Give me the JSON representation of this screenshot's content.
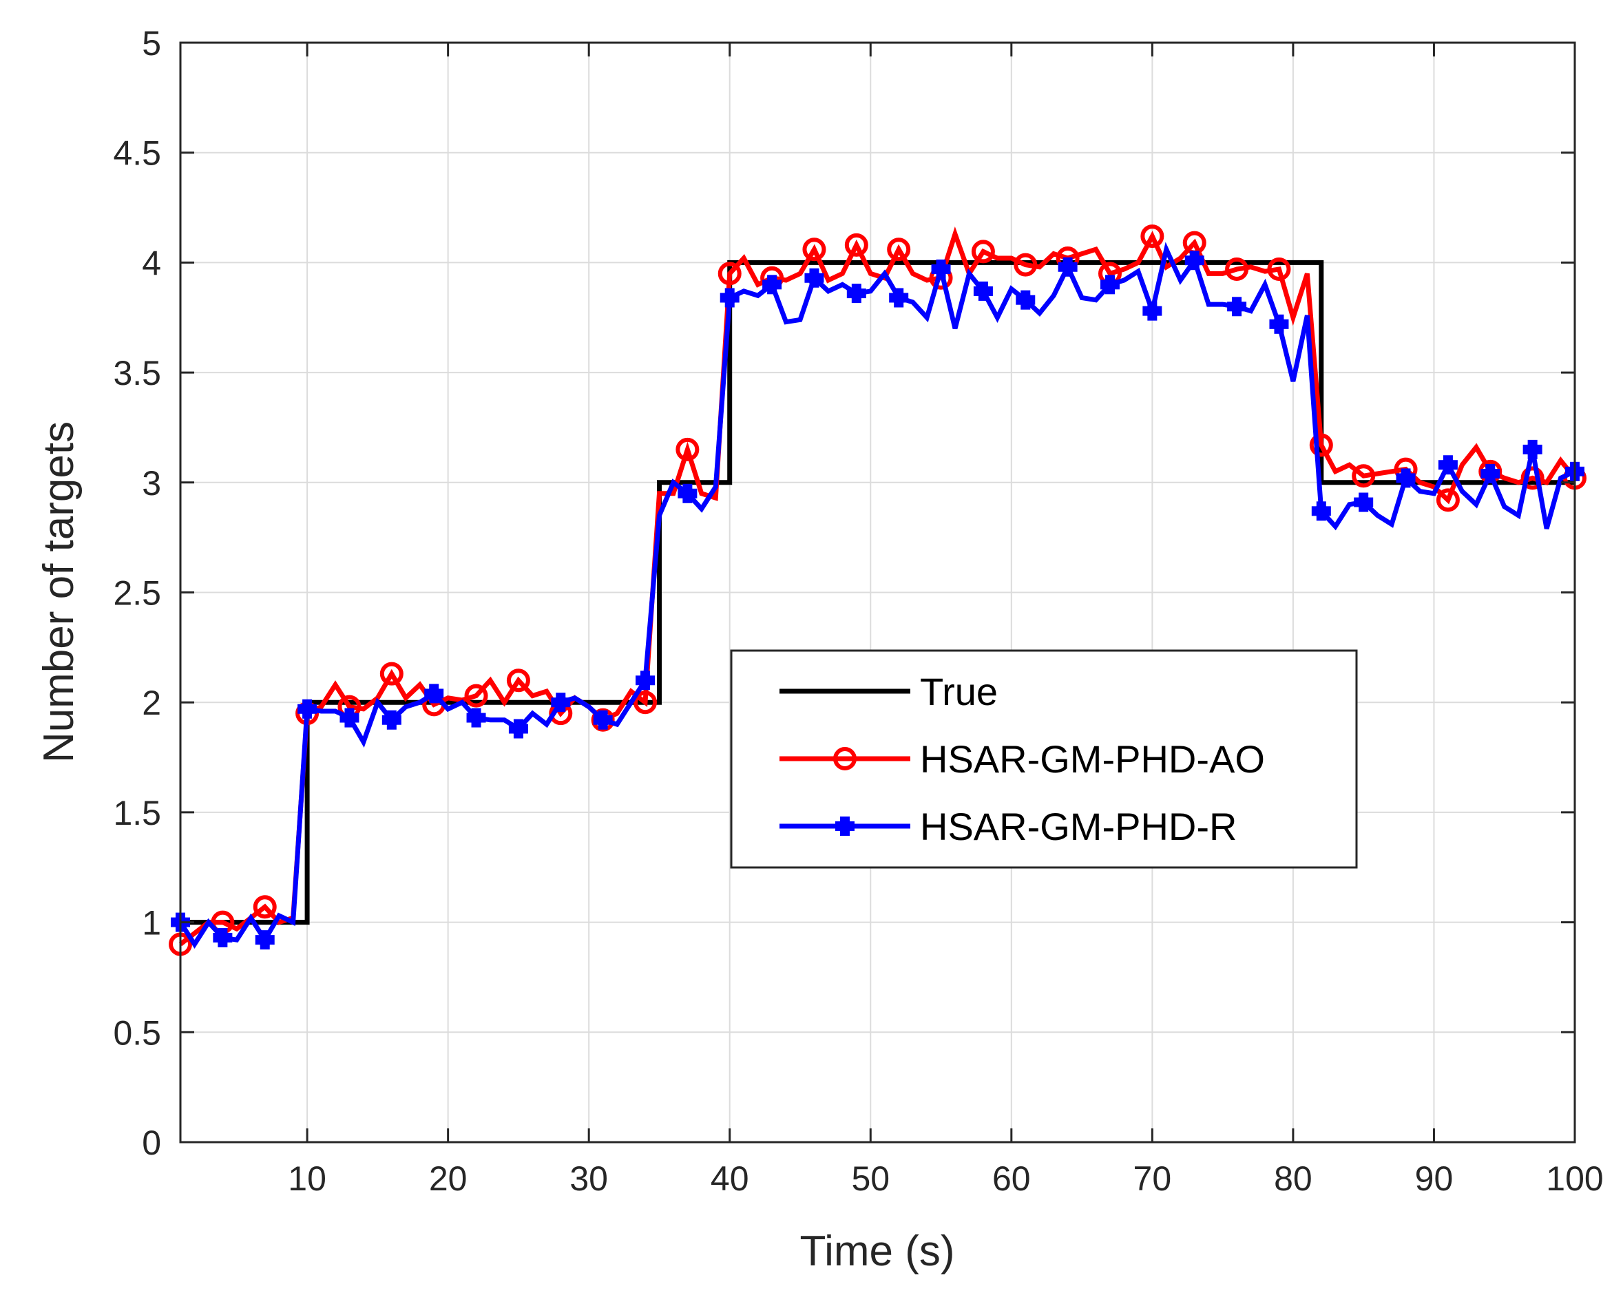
{
  "chart_data": {
    "type": "line",
    "title": "",
    "xlabel": "Time (s)",
    "ylabel": "Number of targets",
    "xlim": [
      1,
      100
    ],
    "ylim": [
      0,
      5
    ],
    "xticks": [
      10,
      20,
      30,
      40,
      50,
      60,
      70,
      80,
      90,
      100
    ],
    "yticks": [
      0,
      0.5,
      1,
      1.5,
      2,
      2.5,
      3,
      3.5,
      4,
      4.5,
      5
    ],
    "ytick_labels": [
      "0",
      "0.5",
      "1",
      "1.5",
      "2",
      "2.5",
      "3",
      "3.5",
      "4",
      "4.5",
      "5"
    ],
    "grid": true,
    "legend_position": "center-right",
    "series": [
      {
        "name": "True",
        "color": "#000000",
        "marker": "none",
        "step": true,
        "x": [
          1,
          10,
          10,
          35,
          35,
          40,
          40,
          82,
          82,
          100
        ],
        "y": [
          1,
          1,
          2,
          2,
          3,
          3,
          4,
          4,
          3,
          3
        ]
      },
      {
        "name": "HSAR-GM-PHD-AO",
        "color": "#ff0000",
        "marker": "circle",
        "marker_every": 3,
        "marker_start": 1,
        "x": [
          1,
          2,
          3,
          4,
          5,
          6,
          7,
          8,
          9,
          10,
          11,
          12,
          13,
          14,
          15,
          16,
          17,
          18,
          19,
          20,
          21,
          22,
          23,
          24,
          25,
          26,
          27,
          28,
          29,
          30,
          31,
          32,
          33,
          34,
          35,
          36,
          37,
          38,
          39,
          40,
          41,
          42,
          43,
          44,
          45,
          46,
          47,
          48,
          49,
          50,
          51,
          52,
          53,
          54,
          55,
          56,
          57,
          58,
          59,
          60,
          61,
          62,
          63,
          64,
          65,
          66,
          67,
          68,
          69,
          70,
          71,
          72,
          73,
          74,
          75,
          76,
          77,
          78,
          79,
          80,
          81,
          82,
          83,
          84,
          85,
          86,
          87,
          88,
          89,
          90,
          91,
          92,
          93,
          94,
          95,
          96,
          97,
          98,
          99,
          100
        ],
        "y": [
          0.9,
          0.95,
          1.0,
          1.0,
          0.97,
          1.02,
          1.07,
          1.0,
          1.02,
          1.95,
          1.98,
          2.08,
          1.98,
          1.97,
          2.02,
          2.13,
          2.02,
          2.08,
          1.99,
          2.02,
          2.01,
          2.03,
          2.1,
          2.0,
          2.1,
          2.03,
          2.05,
          1.95,
          2.02,
          1.98,
          1.92,
          1.95,
          2.05,
          2.0,
          2.95,
          2.95,
          3.15,
          2.95,
          2.93,
          3.95,
          4.02,
          3.9,
          3.93,
          3.92,
          3.95,
          4.06,
          3.92,
          3.95,
          4.08,
          3.95,
          3.93,
          4.06,
          3.95,
          3.92,
          3.93,
          4.13,
          3.95,
          4.05,
          4.02,
          4.02,
          3.99,
          3.98,
          4.04,
          4.02,
          4.04,
          4.06,
          3.95,
          3.97,
          4.0,
          4.12,
          3.98,
          4.02,
          4.09,
          3.95,
          3.95,
          3.97,
          3.98,
          3.96,
          3.97,
          3.75,
          3.95,
          3.17,
          3.05,
          3.08,
          3.03,
          3.04,
          3.05,
          3.06,
          3.0,
          2.98,
          2.92,
          3.08,
          3.16,
          3.05,
          3.02,
          3.0,
          3.02,
          3.0,
          3.1,
          3.02
        ]
      },
      {
        "name": "HSAR-GM-PHD-R",
        "color": "#0000ff",
        "marker": "plus-filled",
        "marker_every": 3,
        "marker_start": 1,
        "x": [
          1,
          2,
          3,
          4,
          5,
          6,
          7,
          8,
          9,
          10,
          11,
          12,
          13,
          14,
          15,
          16,
          17,
          18,
          19,
          20,
          21,
          22,
          23,
          24,
          25,
          26,
          27,
          28,
          29,
          30,
          31,
          32,
          33,
          34,
          35,
          36,
          37,
          38,
          39,
          40,
          41,
          42,
          43,
          44,
          45,
          46,
          47,
          48,
          49,
          50,
          51,
          52,
          53,
          54,
          55,
          56,
          57,
          58,
          59,
          60,
          61,
          62,
          63,
          64,
          65,
          66,
          67,
          68,
          69,
          70,
          71,
          72,
          73,
          74,
          75,
          76,
          77,
          78,
          79,
          80,
          81,
          82,
          83,
          84,
          85,
          86,
          87,
          88,
          89,
          90,
          91,
          92,
          93,
          94,
          95,
          96,
          97,
          98,
          99,
          100
        ],
        "y": [
          1.0,
          0.9,
          1.0,
          0.93,
          0.92,
          1.02,
          0.92,
          1.03,
          1.0,
          1.97,
          1.96,
          1.96,
          1.93,
          1.82,
          2.0,
          1.92,
          1.98,
          2.0,
          2.04,
          1.97,
          2.0,
          1.93,
          1.92,
          1.92,
          1.88,
          1.95,
          1.9,
          2.0,
          2.02,
          1.98,
          1.92,
          1.9,
          2.0,
          2.1,
          2.85,
          3.0,
          2.95,
          2.88,
          2.98,
          3.84,
          3.87,
          3.85,
          3.9,
          3.73,
          3.74,
          3.93,
          3.87,
          3.9,
          3.86,
          3.87,
          3.95,
          3.84,
          3.82,
          3.75,
          3.97,
          3.7,
          3.95,
          3.87,
          3.75,
          3.88,
          3.83,
          3.77,
          3.85,
          3.98,
          3.84,
          3.83,
          3.9,
          3.92,
          3.96,
          3.78,
          4.06,
          3.92,
          4.01,
          3.81,
          3.81,
          3.8,
          3.78,
          3.9,
          3.72,
          3.46,
          3.76,
          2.87,
          2.8,
          2.9,
          2.91,
          2.85,
          2.81,
          3.02,
          2.96,
          2.95,
          3.08,
          2.96,
          2.9,
          3.04,
          2.89,
          2.85,
          3.15,
          2.79,
          3.02,
          3.05
        ]
      }
    ]
  }
}
